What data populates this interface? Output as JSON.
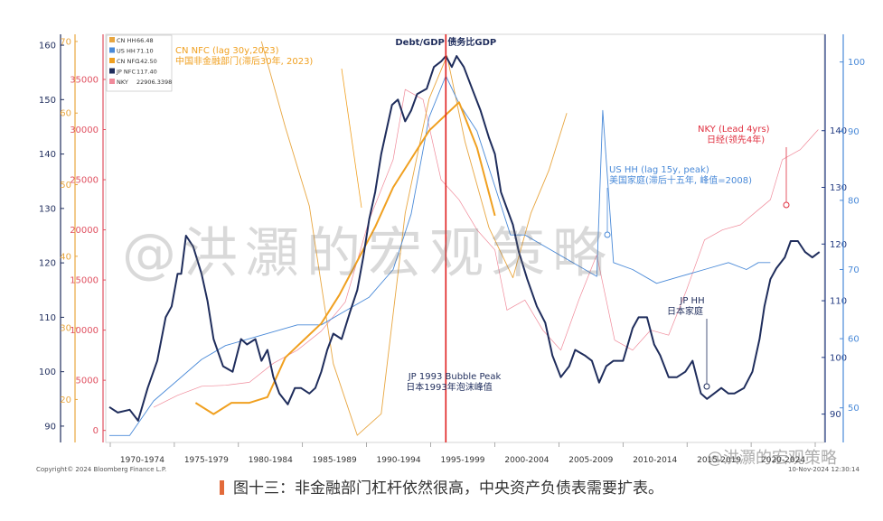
{
  "chart_data": {
    "type": "line",
    "title": "Debt/GDP 债务比GDP",
    "x_categories": [
      "1970-1974",
      "1975-1979",
      "1980-1984",
      "1985-1989",
      "1990-1994",
      "1995-1999",
      "2000-2004",
      "2005-2009",
      "2010-2014",
      "2015-2019",
      "2020-2024"
    ],
    "xlim": [
      1966,
      2026
    ],
    "axes": {
      "jp_hh_axis": {
        "ticks": [
          90,
          100,
          110,
          120,
          130,
          140,
          150,
          160
        ],
        "ylim": [
          87,
          162
        ],
        "color": "#1f2d5c"
      },
      "cn_hh_axis": {
        "ticks": [
          20,
          30,
          40,
          50,
          60,
          70
        ],
        "ylim": [
          14,
          71
        ],
        "color": "#e8a640"
      },
      "nky_axis": {
        "ticks": [
          0,
          5000,
          10000,
          15000,
          20000,
          25000,
          30000,
          35000
        ],
        "ylim": [
          -1200,
          39500
        ],
        "color": "#e05060"
      },
      "us_hh_axis": {
        "ticks": [
          50,
          60,
          70,
          80,
          90,
          100
        ],
        "ylim": [
          45,
          104
        ],
        "color": "#4a8ad8"
      },
      "nfc_axis": {
        "ticks": [
          90,
          100,
          110,
          120,
          130,
          140
        ],
        "ylim": [
          85,
          157
        ],
        "color": "#223a80"
      }
    },
    "legend": {
      "placement": "top-left",
      "entries": [
        {
          "name": "CN HH",
          "value": "66.48",
          "color": "#e8a640"
        },
        {
          "name": "US HH",
          "value": "71.10",
          "color": "#4a8ad8"
        },
        {
          "name": "CN NFC",
          "value": "142.50",
          "color": "#f0a020"
        },
        {
          "name": "JP NFC",
          "value": "117.40",
          "color": "#1f2d5c"
        },
        {
          "name": "NKY",
          "value": "22906.3398",
          "color": "#f08a9a"
        }
      ]
    },
    "series": [
      {
        "name": "JP HH",
        "color": "#1f2d5c",
        "axis": "jp_hh_axis",
        "points": [
          [
            1966.3,
            93.5
          ],
          [
            1967,
            92.5
          ],
          [
            1968,
            93
          ],
          [
            1968.7,
            91
          ],
          [
            1969.5,
            97
          ],
          [
            1970.3,
            102
          ],
          [
            1971,
            110
          ],
          [
            1971.5,
            112
          ],
          [
            1972,
            118
          ],
          [
            1972.3,
            118
          ],
          [
            1972.7,
            125
          ],
          [
            1973.3,
            123
          ],
          [
            1974,
            118
          ],
          [
            1974.5,
            113
          ],
          [
            1975,
            106
          ],
          [
            1975.8,
            101
          ],
          [
            1976.6,
            100
          ],
          [
            1977.3,
            106
          ],
          [
            1977.8,
            105
          ],
          [
            1978.5,
            106
          ],
          [
            1979,
            102
          ],
          [
            1979.5,
            104
          ],
          [
            1980,
            99
          ],
          [
            1980.5,
            96
          ],
          [
            1981.2,
            94
          ],
          [
            1981.8,
            97
          ],
          [
            1982.3,
            97
          ],
          [
            1983,
            96
          ],
          [
            1983.5,
            97
          ],
          [
            1984,
            100
          ],
          [
            1984.5,
            104
          ],
          [
            1985,
            107
          ],
          [
            1985.7,
            106
          ],
          [
            1986.4,
            111
          ],
          [
            1987,
            115
          ],
          [
            1987.5,
            121
          ],
          [
            1988,
            128
          ],
          [
            1988.5,
            133
          ],
          [
            1989,
            140
          ],
          [
            1989.5,
            145
          ],
          [
            1989.9,
            149
          ],
          [
            1990.4,
            150
          ],
          [
            1991,
            146
          ],
          [
            1991.5,
            148
          ],
          [
            1992,
            151
          ],
          [
            1992.8,
            152
          ],
          [
            1993.4,
            156
          ],
          [
            1994,
            157
          ],
          [
            1994.4,
            158
          ],
          [
            1994.9,
            156
          ],
          [
            1995.3,
            158
          ],
          [
            1995.9,
            156
          ],
          [
            1996.6,
            152
          ],
          [
            1997.3,
            148
          ],
          [
            1998,
            143
          ],
          [
            1998.5,
            140
          ],
          [
            1999,
            133
          ],
          [
            1999.5,
            130
          ],
          [
            2000,
            127
          ],
          [
            2000.5,
            122
          ],
          [
            2001.2,
            117
          ],
          [
            2002,
            112
          ],
          [
            2002.7,
            109
          ],
          [
            2003.3,
            103
          ],
          [
            2004,
            99
          ],
          [
            2004.7,
            101
          ],
          [
            2005.2,
            104
          ],
          [
            2006,
            103
          ],
          [
            2006.6,
            102
          ],
          [
            2007.2,
            98
          ],
          [
            2007.8,
            101
          ],
          [
            2008.4,
            102
          ],
          [
            2009.2,
            102
          ],
          [
            2010,
            108
          ],
          [
            2010.5,
            110
          ],
          [
            2011.2,
            110
          ],
          [
            2011.8,
            105
          ],
          [
            2012.3,
            103
          ],
          [
            2013,
            99
          ],
          [
            2013.7,
            99
          ],
          [
            2014.4,
            100
          ],
          [
            2015,
            102
          ],
          [
            2015.7,
            96
          ],
          [
            2016.2,
            95
          ],
          [
            2016.8,
            96
          ],
          [
            2017.4,
            97
          ],
          [
            2018,
            96
          ],
          [
            2018.5,
            96
          ],
          [
            2019.3,
            97
          ],
          [
            2020,
            100
          ],
          [
            2020.6,
            106
          ],
          [
            2021,
            112
          ],
          [
            2021.5,
            117
          ],
          [
            2022,
            119
          ],
          [
            2022.7,
            121
          ],
          [
            2023.2,
            124
          ],
          [
            2023.8,
            124
          ],
          [
            2024.4,
            122
          ],
          [
            2025,
            121
          ],
          [
            2025.6,
            122
          ]
        ]
      },
      {
        "name": "US HH",
        "color": "#4a8ad8",
        "axis": "us_hh_axis",
        "points": [
          [
            1966.3,
            46
          ],
          [
            1968,
            46
          ],
          [
            1970,
            51
          ],
          [
            1972,
            54
          ],
          [
            1974,
            57
          ],
          [
            1976,
            59
          ],
          [
            1978,
            60
          ],
          [
            1980,
            61
          ],
          [
            1982,
            62
          ],
          [
            1984,
            62
          ],
          [
            1986,
            64
          ],
          [
            1988,
            66
          ],
          [
            1990,
            70
          ],
          [
            1991.5,
            78
          ],
          [
            1993,
            92
          ],
          [
            1994.4,
            98
          ],
          [
            1995.5,
            94
          ],
          [
            1997,
            90
          ],
          [
            1998.5,
            82
          ],
          [
            1999.8,
            75
          ],
          [
            2001,
            75
          ],
          [
            2003,
            73
          ],
          [
            2005,
            71
          ],
          [
            2007,
            69
          ],
          [
            2007.5,
            93
          ],
          [
            2008.4,
            71
          ],
          [
            2010,
            70
          ],
          [
            2012,
            68
          ],
          [
            2014,
            69
          ],
          [
            2016,
            70
          ],
          [
            2018,
            71
          ],
          [
            2019.5,
            70
          ],
          [
            2020.5,
            71
          ],
          [
            2021.5,
            71
          ]
        ]
      },
      {
        "name": "CN NFC",
        "color": "#f0a020",
        "axis": "nfc_axis",
        "points": [
          [
            1973.5,
            92
          ],
          [
            1975,
            90
          ],
          [
            1976.5,
            92
          ],
          [
            1978,
            92
          ],
          [
            1979.5,
            93
          ],
          [
            1981,
            100
          ],
          [
            1982.5,
            103
          ],
          [
            1984,
            106
          ],
          [
            1985.5,
            111
          ],
          [
            1987,
            117
          ],
          [
            1988.5,
            123
          ],
          [
            1990,
            130
          ],
          [
            1991.5,
            135
          ],
          [
            1993,
            140
          ],
          [
            1994.5,
            143
          ],
          [
            1995.5,
            145
          ],
          [
            1997,
            137
          ],
          [
            1998.5,
            125
          ]
        ]
      },
      {
        "name": "CN HH",
        "color": "#e8a640",
        "axis": "cn_hh_axis",
        "points": [
          [
            1979,
            70
          ],
          [
            1981,
            58
          ],
          [
            1983,
            47
          ],
          [
            1985,
            25
          ],
          [
            1987,
            15
          ],
          [
            1989,
            18
          ],
          [
            1991,
            46
          ],
          [
            1993,
            62
          ],
          [
            1994.5,
            68
          ],
          [
            1996,
            56
          ],
          [
            1998,
            44
          ],
          [
            2000,
            37
          ],
          [
            2001.5,
            46
          ],
          [
            2003,
            52
          ],
          [
            2004.5,
            60
          ]
        ]
      },
      {
        "name": "NKY",
        "color": "#f08a9a",
        "axis": "nky_axis",
        "points": [
          [
            1970,
            2300
          ],
          [
            1972,
            3500
          ],
          [
            1974,
            4400
          ],
          [
            1976,
            4500
          ],
          [
            1978,
            4800
          ],
          [
            1980,
            6700
          ],
          [
            1982,
            8000
          ],
          [
            1984,
            9900
          ],
          [
            1986,
            12800
          ],
          [
            1988,
            21000
          ],
          [
            1990,
            27000
          ],
          [
            1991,
            34000
          ],
          [
            1992.5,
            33000
          ],
          [
            1994,
            25000
          ],
          [
            1995.5,
            23000
          ],
          [
            1997,
            20000
          ],
          [
            1998.5,
            18000
          ],
          [
            1999.5,
            12000
          ],
          [
            2001,
            13000
          ],
          [
            2002.5,
            10000
          ],
          [
            2004,
            8000
          ],
          [
            2005.5,
            13000
          ],
          [
            2007,
            17500
          ],
          [
            2008.5,
            9000
          ],
          [
            2010,
            8000
          ],
          [
            2011.5,
            10000
          ],
          [
            2013,
            9500
          ],
          [
            2014.5,
            14000
          ],
          [
            2016,
            19000
          ],
          [
            2017.5,
            20000
          ],
          [
            2019,
            20500
          ],
          [
            2020.5,
            22000
          ],
          [
            2021.5,
            23000
          ],
          [
            2022.5,
            27000
          ],
          [
            2024,
            28000
          ],
          [
            2025.5,
            30000
          ]
        ]
      }
    ],
    "annotations": {
      "vline": {
        "x": 1994.4,
        "color": "#e02020",
        "label": "Debt/GDP 债务比GDP"
      },
      "cn_nfc_label_en": "CN NFC (lag 30y,2023)",
      "cn_nfc_label_cn": "中国非金融部门(滞后30年, 2023)",
      "us_hh_label_en": "US HH (lag 15y, peak)",
      "us_hh_label_cn": "美国家庭(滞后十五年, 峰值=2008)",
      "nky_label_en": "NKY (Lead 4yrs)",
      "nky_label_cn": "日经(领先4年)",
      "jp_hh_label_en": "JP HH",
      "jp_hh_label_cn": "日本家庭",
      "jp_bubble_label_en": "JP 1993 Bubble Peak",
      "jp_bubble_label_cn": "日本1993年泡沫峰值"
    }
  },
  "footer": {
    "copyright": "Copyright© 2024 Bloomberg Finance L.P.",
    "timestamp": "10-Nov-2024 12:30:14"
  },
  "watermark": "@洪灝的宏观策略",
  "watermark_small": "@洪灝的宏观策略",
  "caption": "图十三：非金融部门杠杆依然很高，中央资产负债表需要扩表。"
}
